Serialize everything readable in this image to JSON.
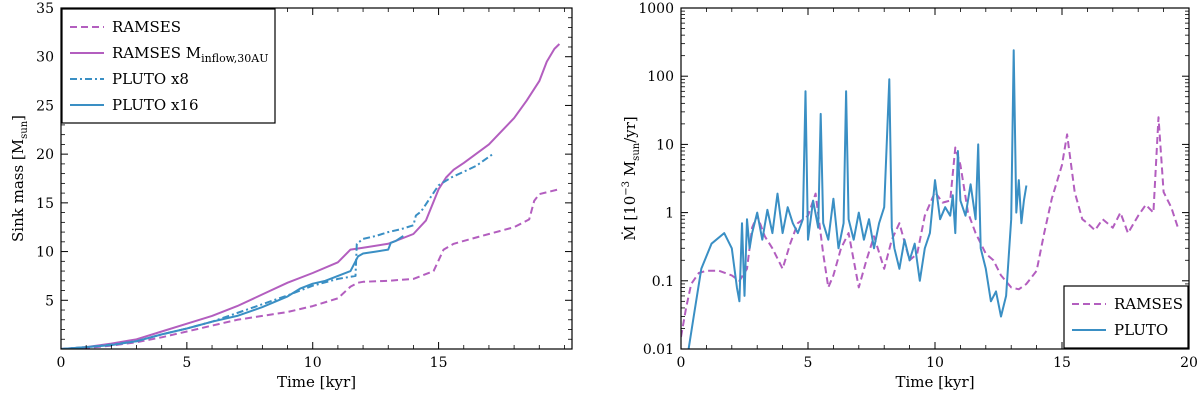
{
  "colors": {
    "ramses": "#b35ebf",
    "pluto": "#3a8fc4"
  },
  "chart_data": [
    {
      "type": "line",
      "xlabel": "Time [kyr]",
      "ylabel": {
        "main": "Sink mass [M",
        "sub": "sun",
        "close": "]"
      },
      "xlim": [
        0,
        20.3
      ],
      "ylim": [
        0,
        35
      ],
      "xticks": [
        0,
        5,
        10,
        15
      ],
      "yticks": [
        5,
        10,
        15,
        20,
        25,
        30,
        35
      ],
      "legend": {
        "placement": "top-left",
        "entries": [
          {
            "series": 0,
            "label": "RAMSES"
          },
          {
            "series": 1,
            "label": "RAMSES M",
            "sub": "inflow,30AU"
          },
          {
            "series": 2,
            "label": "PLUTO x8"
          },
          {
            "series": 3,
            "label": "PLUTO x16"
          }
        ]
      },
      "series": [
        {
          "name": "RAMSES",
          "color": "#b35ebf",
          "dash": "dashed",
          "x": [
            0,
            1,
            2,
            3,
            4,
            5,
            6,
            7,
            8,
            9,
            10,
            11,
            11.5,
            11.8,
            12,
            13,
            14,
            14.8,
            15.2,
            15.6,
            16,
            17,
            18,
            18.6,
            18.8,
            19,
            19.8
          ],
          "y": [
            0,
            0.1,
            0.35,
            0.7,
            1.2,
            1.8,
            2.4,
            3.0,
            3.4,
            3.8,
            4.4,
            5.2,
            6.4,
            6.8,
            6.9,
            7.0,
            7.2,
            8.0,
            10.2,
            10.8,
            11.1,
            11.8,
            12.5,
            13.3,
            15.2,
            15.9,
            16.4
          ]
        },
        {
          "name": "RAMSES M_inflow,30AU",
          "color": "#b35ebf",
          "dash": "solid",
          "x": [
            0,
            1,
            2,
            3,
            4,
            5,
            6,
            7,
            8,
            9,
            10,
            11,
            11.5,
            12,
            13,
            14,
            14.5,
            15,
            15.3,
            15.6,
            16,
            17,
            18,
            18.5,
            19,
            19.3,
            19.6,
            19.8
          ],
          "y": [
            0,
            0.2,
            0.55,
            1.0,
            1.8,
            2.6,
            3.4,
            4.4,
            5.6,
            6.8,
            7.8,
            8.9,
            10.2,
            10.4,
            10.8,
            11.8,
            13.2,
            16.4,
            17.6,
            18.4,
            19.1,
            21.0,
            23.7,
            25.5,
            27.5,
            29.5,
            30.8,
            31.3
          ]
        },
        {
          "name": "PLUTO x8",
          "color": "#3a8fc4",
          "dash": "dashdot",
          "x": [
            0,
            1,
            2,
            3,
            4,
            5,
            6,
            7,
            8,
            9,
            10,
            11,
            11.7,
            11.75,
            12,
            12.5,
            13,
            13.5,
            14,
            14.1,
            14.3,
            15,
            15.5,
            16,
            16.5,
            17.2
          ],
          "y": [
            0,
            0.2,
            0.45,
            0.8,
            1.5,
            2.1,
            2.8,
            3.7,
            4.6,
            5.5,
            6.5,
            7.2,
            7.5,
            10.8,
            11.3,
            11.6,
            12.0,
            12.3,
            12.7,
            13.7,
            14.1,
            16.8,
            17.6,
            18.2,
            18.8,
            20.1
          ]
        },
        {
          "name": "PLUTO x16",
          "color": "#3a8fc4",
          "dash": "solid",
          "x": [
            0,
            1,
            2,
            3,
            4,
            5,
            6,
            7,
            8,
            9,
            9.5,
            10,
            10.5,
            11,
            11.5,
            11.8,
            12,
            12.5,
            13,
            13.1,
            13.3,
            13.6
          ],
          "y": [
            0,
            0.2,
            0.4,
            0.8,
            1.5,
            2.1,
            2.8,
            3.4,
            4.3,
            5.4,
            6.2,
            6.7,
            7.0,
            7.5,
            8.0,
            9.5,
            9.8,
            10.0,
            10.2,
            10.9,
            11.1,
            11.6
          ]
        }
      ]
    },
    {
      "type": "line",
      "xlabel": "Time [kyr]",
      "ylabel": {
        "main": "Ṁ [10",
        "sup": "−3",
        "mid": " M",
        "sub": "sun",
        "close": "/yr]"
      },
      "xlim": [
        0,
        20
      ],
      "ylim": [
        0.01,
        1000
      ],
      "yscale": "log",
      "xticks": [
        0,
        5,
        10,
        15,
        20
      ],
      "yticks": [
        0.01,
        0.1,
        1,
        10,
        100,
        1000
      ],
      "ytick_labels": [
        "0.01",
        "0.1",
        "1",
        "10",
        "100",
        "1000"
      ],
      "legend": {
        "placement": "bottom-right",
        "entries": [
          {
            "series": 0,
            "label": "RAMSES"
          },
          {
            "series": 1,
            "label": "PLUTO"
          }
        ]
      },
      "series": [
        {
          "name": "RAMSES",
          "color": "#b35ebf",
          "dash": "dashed",
          "x": [
            0,
            0.2,
            0.4,
            0.7,
            1.0,
            1.5,
            2.0,
            2.3,
            2.6,
            2.8,
            3.0,
            3.3,
            3.6,
            4.0,
            4.3,
            4.6,
            5.0,
            5.3,
            5.6,
            5.8,
            6.0,
            6.3,
            6.6,
            7.0,
            7.3,
            7.6,
            8.0,
            8.3,
            8.6,
            9.0,
            9.3,
            9.6,
            10.0,
            10.3,
            10.6,
            10.8,
            11.0,
            11.3,
            11.6,
            12.0,
            12.3,
            12.6,
            13.0,
            13.3,
            13.6,
            14.0,
            14.3,
            14.6,
            15.0,
            15.2,
            15.5,
            15.8,
            16.0,
            16.3,
            16.6,
            17.0,
            17.3,
            17.6,
            18.0,
            18.3,
            18.6,
            18.8,
            19.0,
            19.3,
            19.6
          ],
          "y": [
            0.015,
            0.04,
            0.09,
            0.13,
            0.14,
            0.14,
            0.12,
            0.1,
            0.15,
            0.6,
            0.9,
            0.45,
            0.3,
            0.15,
            0.35,
            0.7,
            0.9,
            1.9,
            0.25,
            0.08,
            0.12,
            0.3,
            0.5,
            0.08,
            0.2,
            0.45,
            0.15,
            0.4,
            0.7,
            0.2,
            0.25,
            0.9,
            2.0,
            1.4,
            1.5,
            9.0,
            5.0,
            1.0,
            0.5,
            0.25,
            0.2,
            0.12,
            0.08,
            0.075,
            0.09,
            0.14,
            0.5,
            1.6,
            5.0,
            14.0,
            2.0,
            0.8,
            0.7,
            0.55,
            0.8,
            0.6,
            1.0,
            0.5,
            0.9,
            1.3,
            1.0,
            25.0,
            2.0,
            1.2,
            0.55
          ]
        },
        {
          "name": "PLUTO",
          "color": "#3a8fc4",
          "dash": "solid",
          "x": [
            0.3,
            0.5,
            0.8,
            1.2,
            1.7,
            2.0,
            2.2,
            2.3,
            2.4,
            2.5,
            2.6,
            2.7,
            2.8,
            3.0,
            3.2,
            3.4,
            3.6,
            3.8,
            4.0,
            4.2,
            4.4,
            4.6,
            4.8,
            4.9,
            5.0,
            5.2,
            5.4,
            5.5,
            5.6,
            5.8,
            6.0,
            6.2,
            6.4,
            6.5,
            6.6,
            6.8,
            7.0,
            7.2,
            7.4,
            7.6,
            7.8,
            8.0,
            8.2,
            8.3,
            8.4,
            8.6,
            8.8,
            9.0,
            9.2,
            9.4,
            9.6,
            9.8,
            10.0,
            10.2,
            10.4,
            10.6,
            10.7,
            10.8,
            10.9,
            11.0,
            11.2,
            11.4,
            11.6,
            11.7,
            11.8,
            12.0,
            12.2,
            12.4,
            12.6,
            12.8,
            13.0,
            13.1,
            13.2,
            13.3,
            13.4,
            13.5,
            13.6
          ],
          "y": [
            0.01,
            0.03,
            0.15,
            0.35,
            0.5,
            0.3,
            0.08,
            0.05,
            0.7,
            0.06,
            0.8,
            0.3,
            0.5,
            1.0,
            0.4,
            1.1,
            0.5,
            1.9,
            0.5,
            1.2,
            0.7,
            0.5,
            0.8,
            60.0,
            0.4,
            1.5,
            0.6,
            28.0,
            0.7,
            0.4,
            1.6,
            0.3,
            0.7,
            60.0,
            0.8,
            0.4,
            1.0,
            0.4,
            0.8,
            0.3,
            0.7,
            1.2,
            90.0,
            0.6,
            0.3,
            0.15,
            0.4,
            0.2,
            0.35,
            0.1,
            0.3,
            0.5,
            3.0,
            0.8,
            1.2,
            0.9,
            1.8,
            0.5,
            8.0,
            1.5,
            0.9,
            2.6,
            0.8,
            10.0,
            0.3,
            0.15,
            0.05,
            0.07,
            0.03,
            0.06,
            0.8,
            240.0,
            1.0,
            3.0,
            0.7,
            1.5,
            2.5
          ]
        }
      ]
    }
  ]
}
